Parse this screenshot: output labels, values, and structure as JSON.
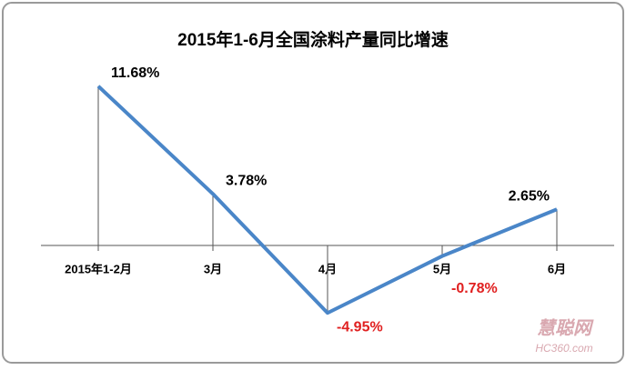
{
  "chart_data": {
    "type": "line",
    "title": "2015年1-6月全国涂料产量同比增速",
    "categories": [
      "2015年1-2月",
      "3月",
      "4月",
      "5月",
      "6月"
    ],
    "series": [
      {
        "name": "同比增速",
        "color": "#4a86c8",
        "values": [
          11.68,
          3.78,
          -4.95,
          -0.78,
          2.65
        ],
        "value_labels": [
          "11.68%",
          "3.78%",
          "-4.95%",
          "-0.78%",
          "2.65%"
        ]
      }
    ],
    "negative_label_color": "#e02020",
    "ylim": [
      -6,
      14
    ],
    "watermark": [
      "慧聪网",
      "HC360.com"
    ]
  }
}
